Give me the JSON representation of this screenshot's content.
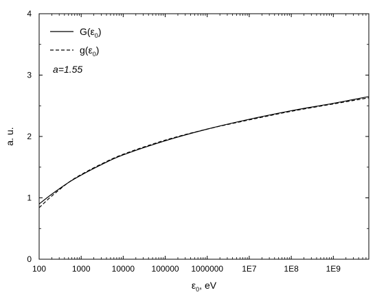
{
  "chart_data": {
    "type": "line",
    "x_scale": "log",
    "xlim": [
      100,
      7000000000
    ],
    "ylim": [
      0,
      4
    ],
    "xlabel": {
      "symbol": "ε",
      "subscript": "0",
      "suffix": ", eV"
    },
    "ylabel": "a. u.",
    "x_ticks": [
      {
        "value": 100,
        "label": "100"
      },
      {
        "value": 1000,
        "label": "1000"
      },
      {
        "value": 10000,
        "label": "10000"
      },
      {
        "value": 100000,
        "label": "100000"
      },
      {
        "value": 1000000,
        "label": "1000000"
      },
      {
        "value": 10000000,
        "label": "1E7"
      },
      {
        "value": 100000000,
        "label": "1E8"
      },
      {
        "value": 1000000000,
        "label": "1E9"
      }
    ],
    "y_ticks": [
      {
        "value": 0,
        "label": "0"
      },
      {
        "value": 1,
        "label": "1"
      },
      {
        "value": 2,
        "label": "2"
      },
      {
        "value": 3,
        "label": "3"
      },
      {
        "value": 4,
        "label": "4"
      }
    ],
    "legend_position": "top-left",
    "annotation": "a=1.55",
    "series": [
      {
        "name": "G(ε0)",
        "legend": {
          "prefix": "G(",
          "symbol": "ε",
          "subscript": "0",
          "suffix": ")"
        },
        "style": "solid",
        "color": "#000000",
        "x": [
          100,
          200,
          500,
          1000,
          3000,
          10000,
          100000,
          1000000,
          10000000,
          100000000,
          1000000000,
          7000000000
        ],
        "y": [
          0.9,
          1.06,
          1.25,
          1.37,
          1.54,
          1.7,
          1.93,
          2.12,
          2.28,
          2.42,
          2.54,
          2.65
        ]
      },
      {
        "name": "g(ε0)",
        "legend": {
          "prefix": "g(",
          "symbol": "ε",
          "subscript": "0",
          "suffix": ")"
        },
        "style": "dashed",
        "color": "#000000",
        "x": [
          100,
          200,
          500,
          1000,
          3000,
          10000,
          100000,
          1000000,
          10000000,
          100000000,
          1000000000,
          7000000000
        ],
        "y": [
          0.84,
          1.03,
          1.25,
          1.38,
          1.55,
          1.71,
          1.94,
          2.12,
          2.27,
          2.41,
          2.53,
          2.63
        ]
      }
    ]
  }
}
